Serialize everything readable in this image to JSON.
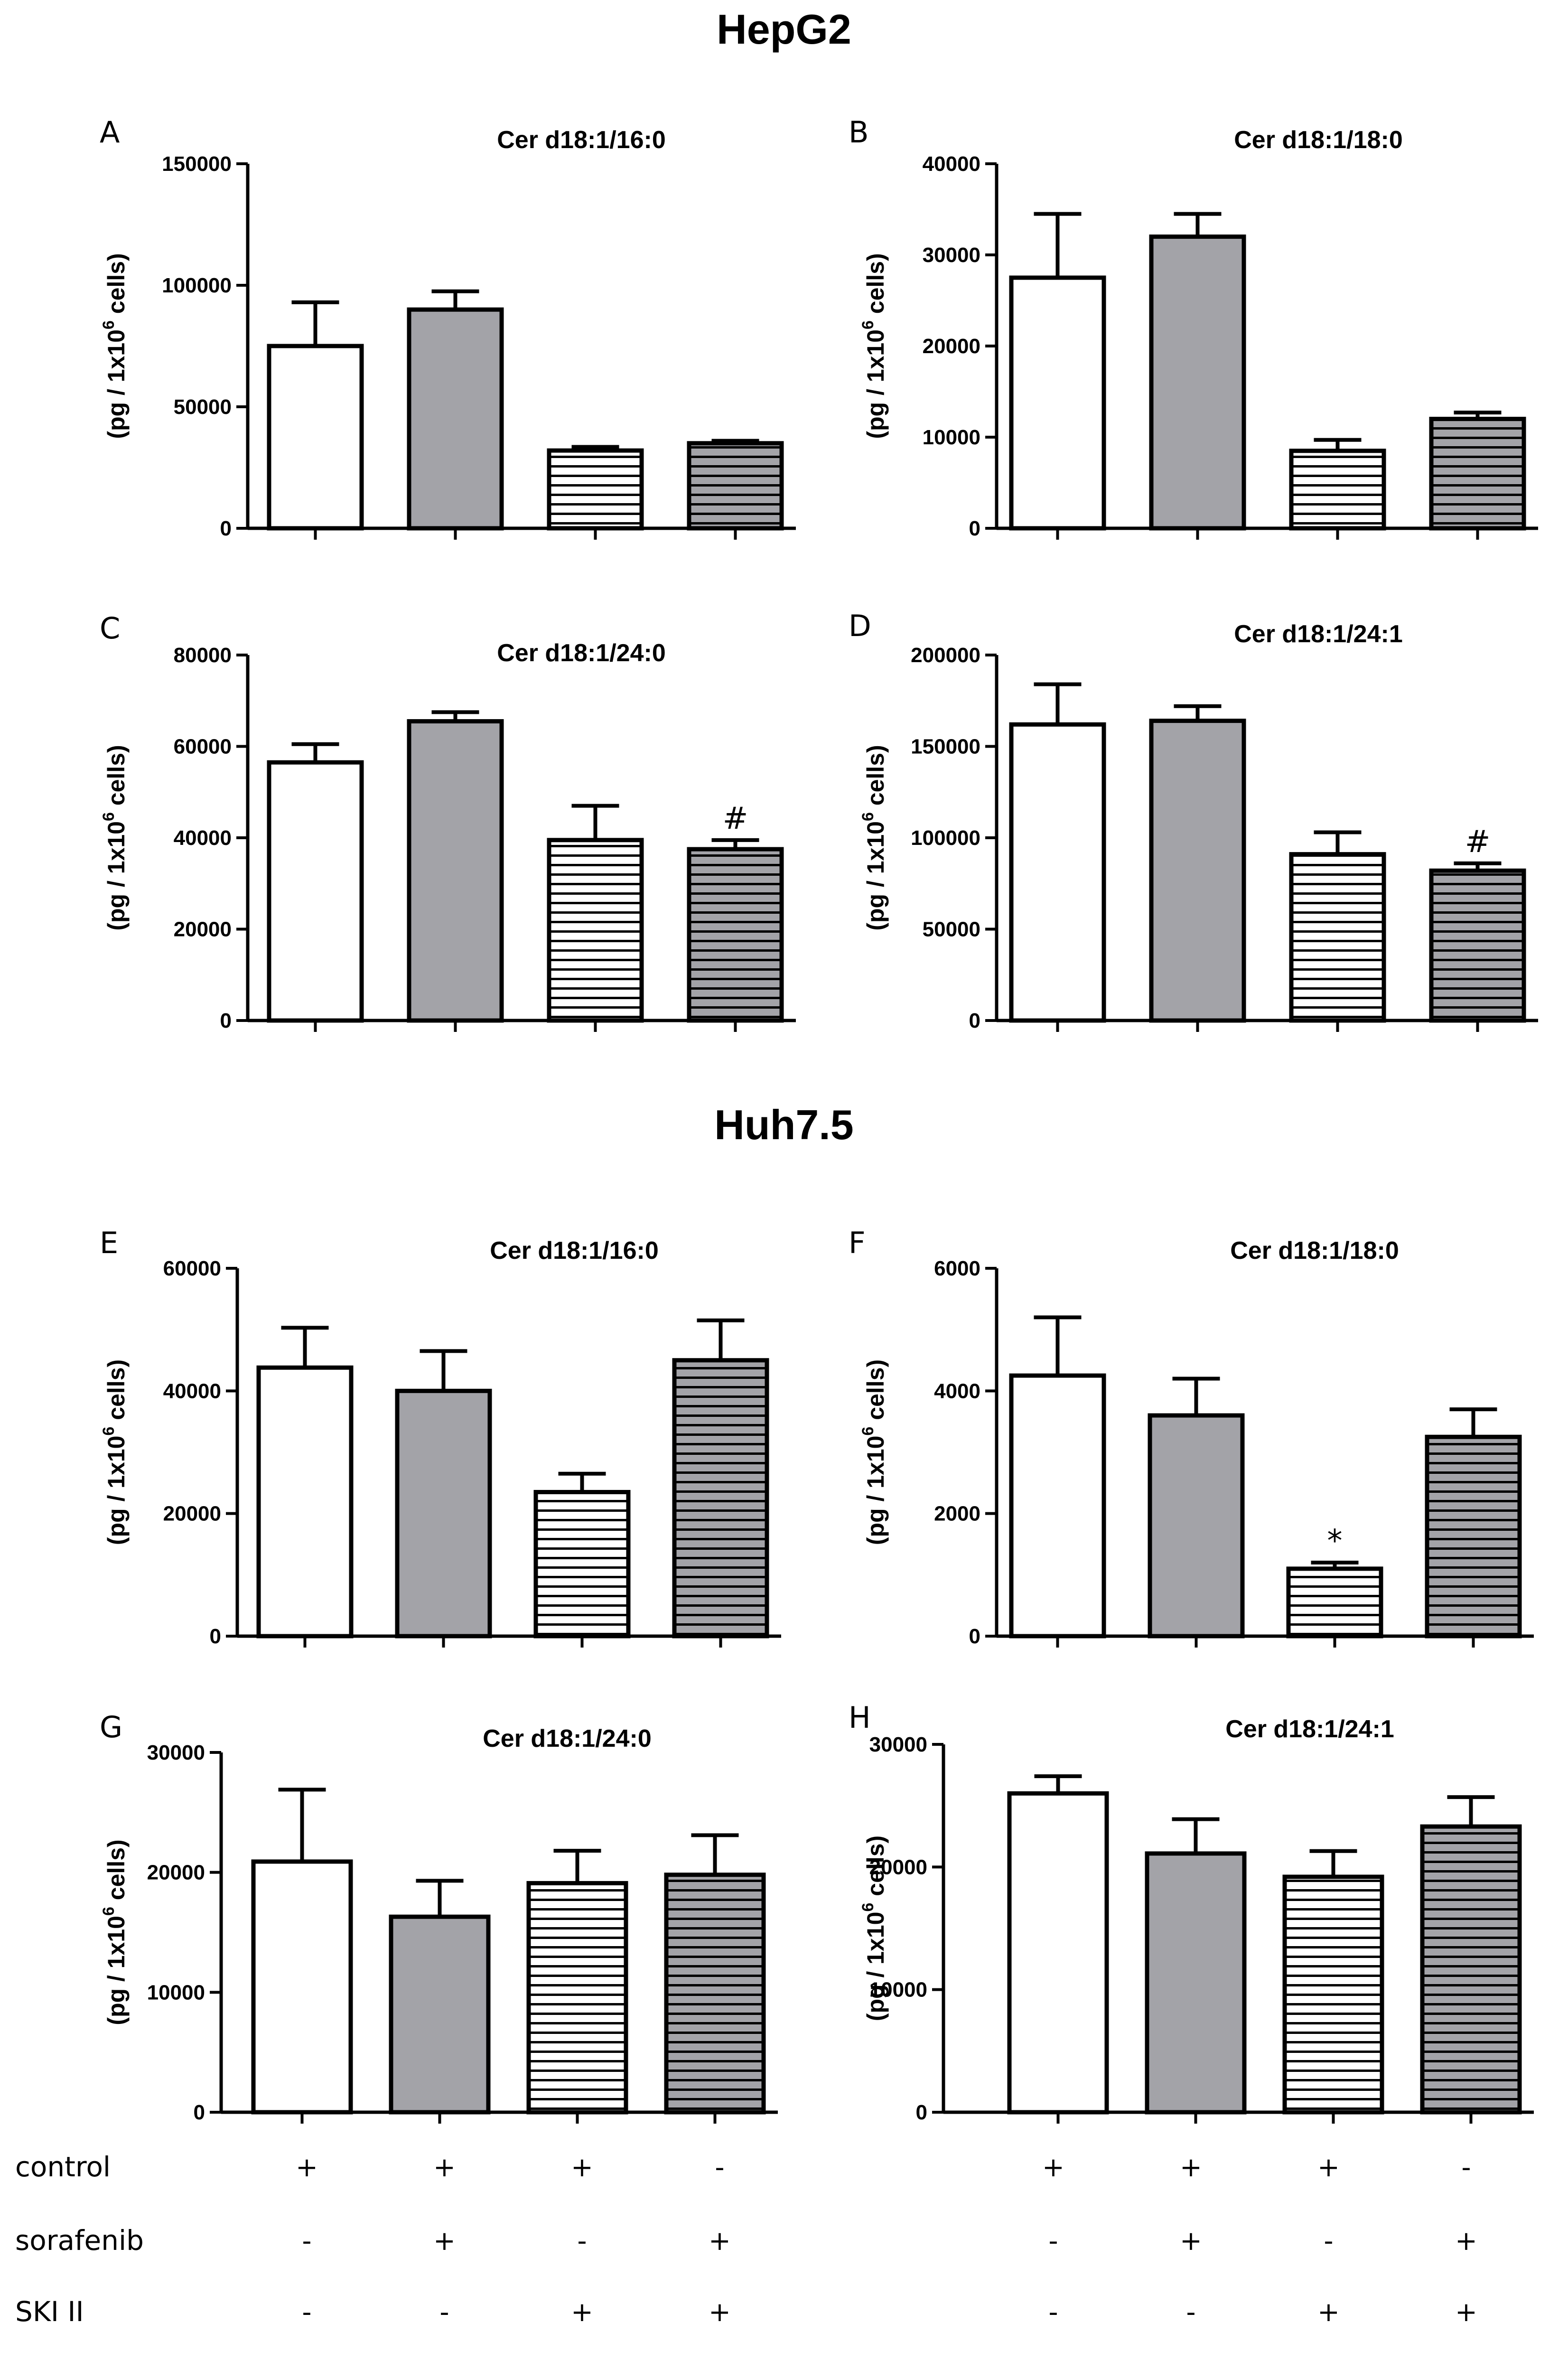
{
  "titles": {
    "top": "HepG2",
    "bottom": "Huh7.5"
  },
  "y_axis_label": {
    "prefix": "(pg / 1x10",
    "sup": "6",
    "suffix": " cells)"
  },
  "colors": {
    "control": "#ffffff",
    "sorafenib": "#a3a3a8",
    "stroke": "#000000",
    "hatch_light_bg": "#ffffff",
    "hatch_dark_bg": "#a3a3a8"
  },
  "groups": [
    "control",
    "sorafenib",
    "SKI II",
    "sorafenib + SKI II"
  ],
  "conditions": {
    "labels": [
      "control",
      "sorafenib",
      "SKI II"
    ],
    "signs": [
      [
        "+",
        "+",
        "+",
        "-"
      ],
      [
        "-",
        "+",
        "-",
        "+"
      ],
      [
        "-",
        "-",
        "+",
        "+"
      ]
    ]
  },
  "chart_data": [
    {
      "letter": "A",
      "cell_line": "HepG2",
      "type": "bar",
      "title": "Cer d18:1/16:0",
      "ylim": [
        0,
        150000
      ],
      "yticks": [
        0,
        50000,
        100000,
        150000
      ],
      "values": [
        75000,
        90000,
        32000,
        35000
      ],
      "errors": [
        18000,
        7500,
        1500,
        1000
      ],
      "annotations": [
        "",
        "",
        "",
        ""
      ]
    },
    {
      "letter": "B",
      "cell_line": "HepG2",
      "type": "bar",
      "title": "Cer d18:1/18:0",
      "ylim": [
        0,
        40000
      ],
      "yticks": [
        0,
        10000,
        20000,
        30000,
        40000
      ],
      "values": [
        27500,
        32000,
        8500,
        12000
      ],
      "errors": [
        7000,
        2500,
        1200,
        700
      ],
      "annotations": [
        "",
        "",
        "",
        ""
      ]
    },
    {
      "letter": "C",
      "cell_line": "HepG2",
      "type": "bar",
      "title": "Cer d18:1/24:0",
      "ylim": [
        0,
        80000
      ],
      "yticks": [
        0,
        20000,
        40000,
        60000,
        80000
      ],
      "values": [
        56500,
        65500,
        39500,
        37500
      ],
      "errors": [
        4000,
        2000,
        7500,
        2000
      ],
      "annotations": [
        "",
        "",
        "",
        "#"
      ]
    },
    {
      "letter": "D",
      "cell_line": "HepG2",
      "type": "bar",
      "title": "Cer d18:1/24:1",
      "ylim": [
        0,
        200000
      ],
      "yticks": [
        0,
        50000,
        100000,
        150000,
        200000
      ],
      "values": [
        162000,
        164000,
        91000,
        82000
      ],
      "errors": [
        22000,
        8000,
        12000,
        4000
      ],
      "annotations": [
        "",
        "",
        "",
        "#"
      ]
    },
    {
      "letter": "E",
      "cell_line": "Huh7.5",
      "type": "bar",
      "title": "Cer d18:1/16:0",
      "ylim": [
        0,
        60000
      ],
      "yticks": [
        0,
        20000,
        40000,
        60000
      ],
      "values": [
        43800,
        40000,
        23500,
        45000
      ],
      "errors": [
        6500,
        6500,
        3000,
        6500
      ],
      "annotations": [
        "",
        "",
        "",
        ""
      ]
    },
    {
      "letter": "F",
      "cell_line": "Huh7.5",
      "type": "bar",
      "title": "Cer d18:1/18:0",
      "ylim": [
        0,
        6000
      ],
      "yticks": [
        0,
        2000,
        4000,
        6000
      ],
      "values": [
        4250,
        3600,
        1100,
        3250
      ],
      "errors": [
        950,
        600,
        100,
        450
      ],
      "annotations": [
        "",
        "",
        "*",
        ""
      ]
    },
    {
      "letter": "G",
      "cell_line": "Huh7.5",
      "type": "bar",
      "title": "Cer d18:1/24:0",
      "ylim": [
        0,
        30000
      ],
      "yticks": [
        0,
        10000,
        20000,
        30000
      ],
      "values": [
        20900,
        16300,
        19100,
        19800
      ],
      "errors": [
        6000,
        3000,
        2700,
        3300
      ],
      "annotations": [
        "",
        "",
        "",
        ""
      ]
    },
    {
      "letter": "H",
      "cell_line": "Huh7.5",
      "type": "bar",
      "title": "Cer d18:1/24:1",
      "ylim": [
        0,
        30000
      ],
      "yticks": [
        0,
        10000,
        20000,
        30000
      ],
      "values": [
        26000,
        21100,
        19200,
        23300
      ],
      "errors": [
        1400,
        2800,
        2100,
        2400
      ],
      "annotations": [
        "",
        "",
        "",
        ""
      ]
    }
  ]
}
